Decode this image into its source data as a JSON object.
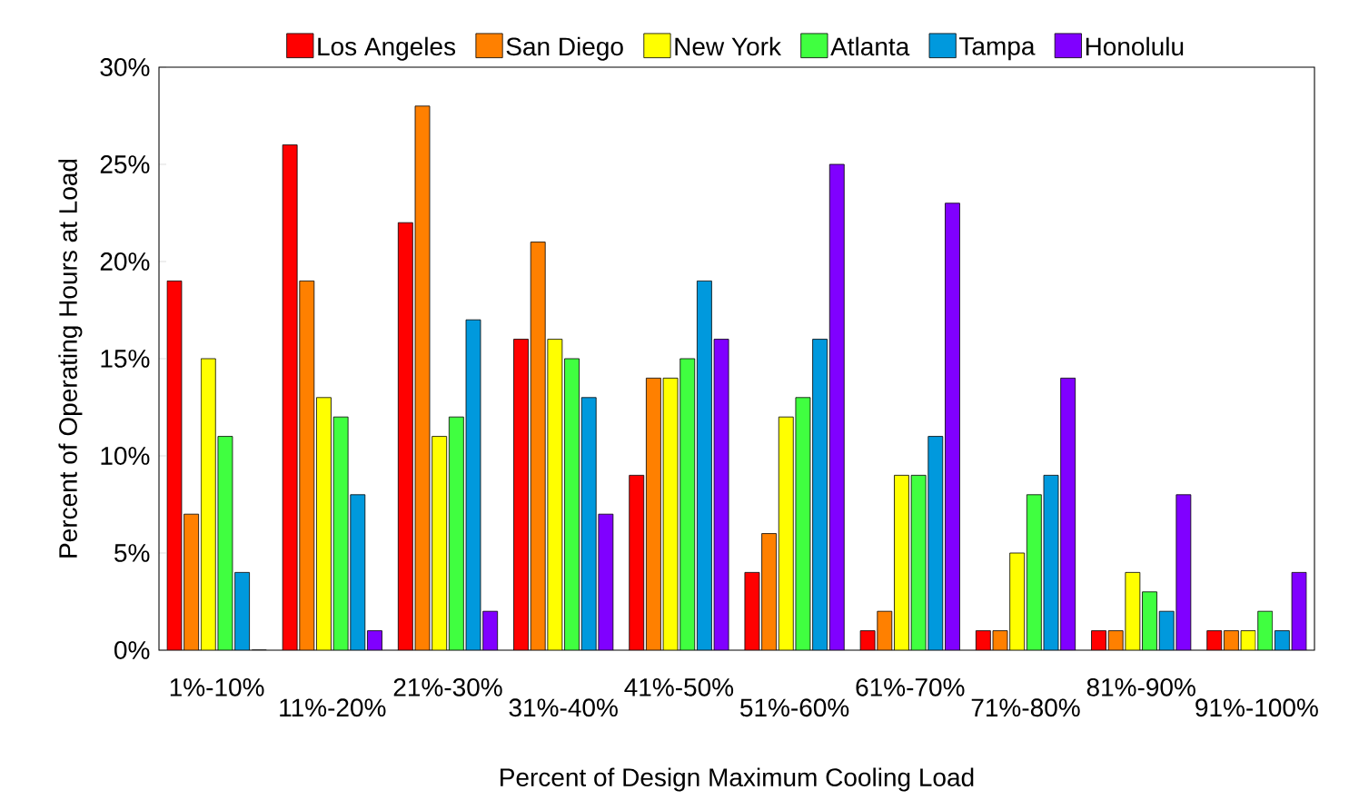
{
  "chart_data": {
    "type": "bar",
    "xlabel": "Percent of Design Maximum Cooling Load",
    "ylabel": "Percent of Operating Hours at Load",
    "categories": [
      "1%-10%",
      "11%-20%",
      "21%-30%",
      "31%-40%",
      "41%-50%",
      "51%-60%",
      "61%-70%",
      "71%-80%",
      "81%-90%",
      "91%-100%"
    ],
    "series": [
      {
        "name": "Los Angeles",
        "color": "#ff0000",
        "values": [
          19,
          26,
          22,
          16,
          9,
          4,
          1,
          1,
          1,
          1
        ]
      },
      {
        "name": "San Diego",
        "color": "#ff8000",
        "values": [
          7,
          19,
          28,
          21,
          14,
          6,
          2,
          1,
          1,
          1
        ]
      },
      {
        "name": "New York",
        "color": "#ffff00",
        "values": [
          15,
          13,
          11,
          16,
          14,
          12,
          9,
          5,
          4,
          1
        ]
      },
      {
        "name": "Atlanta",
        "color": "#40ff40",
        "values": [
          11,
          12,
          12,
          15,
          15,
          13,
          9,
          8,
          3,
          2
        ]
      },
      {
        "name": "Tampa",
        "color": "#0099dd",
        "values": [
          4,
          8,
          17,
          13,
          19,
          16,
          11,
          9,
          2,
          1
        ]
      },
      {
        "name": "Honolulu",
        "color": "#8000ff",
        "values": [
          0,
          1,
          2,
          7,
          16,
          25,
          23,
          14,
          8,
          4
        ]
      }
    ],
    "ylim": [
      0,
      30
    ],
    "yticks": [
      {
        "value": 0,
        "label": "0%"
      },
      {
        "value": 5,
        "label": "5%"
      },
      {
        "value": 10,
        "label": "10%"
      },
      {
        "value": 15,
        "label": "15%"
      },
      {
        "value": 20,
        "label": "20%"
      },
      {
        "value": 25,
        "label": "25%"
      },
      {
        "value": 30,
        "label": "30%"
      }
    ],
    "legend": "top"
  }
}
